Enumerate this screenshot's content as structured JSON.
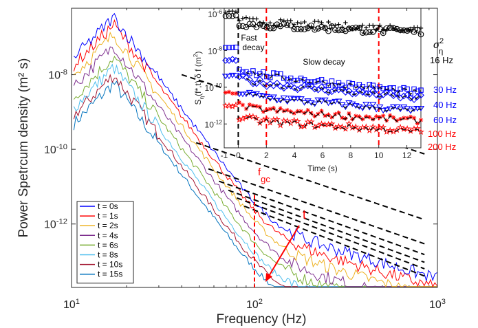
{
  "chart_data": [
    {
      "type": "line",
      "xlabel": "Frequency  (Hz)",
      "ylabel": "Power Spetrcum density  (m² s)",
      "xscale": "log",
      "yscale": "log",
      "xlim": [
        10,
        1000
      ],
      "ylim": [
        2e-14,
        6e-07
      ],
      "x_ticks": [
        {
          "v": 10,
          "b": "10",
          "e": "1"
        },
        {
          "v": 100,
          "b": "10",
          "e": "2"
        },
        {
          "v": 1000,
          "b": "10",
          "e": "3"
        }
      ],
      "y_ticks": [
        {
          "v": 1e-12,
          "b": "10",
          "e": "-12"
        },
        {
          "v": 1e-10,
          "b": "10",
          "e": "-10"
        },
        {
          "v": 1e-08,
          "b": "10",
          "e": "-8"
        }
      ],
      "legend_position": "bottom-left",
      "series": [
        {
          "name": "t = 0s",
          "color": "#0000ff",
          "peak": 3.5e-07,
          "high": 6e-13,
          "knee": 130
        },
        {
          "name": "t = 1s",
          "color": "#ff0000",
          "peak": 2.2e-07,
          "high": 4e-13,
          "knee": 115
        },
        {
          "name": "t = 2s",
          "color": "#edb120",
          "peak": 1.2e-07,
          "high": 2.5e-13,
          "knee": 100
        },
        {
          "name": "t = 4s",
          "color": "#7e2f8e",
          "peak": 6e-08,
          "high": 1.5e-13,
          "knee": 90
        },
        {
          "name": "t = 6s",
          "color": "#77ac30",
          "peak": 3e-08,
          "high": 1e-13,
          "knee": 80
        },
        {
          "name": "t = 8s",
          "color": "#4dbeee",
          "peak": 1.6e-08,
          "high": 6e-14,
          "knee": 70
        },
        {
          "name": "t = 10s",
          "color": "#a2142f",
          "peak": 1e-08,
          "high": 4e-14,
          "knee": 65
        },
        {
          "name": "t = 15s",
          "color": "#0072bd",
          "peak": 6e-09,
          "high": 3e-14,
          "knee": 60
        }
      ],
      "cutoff": {
        "label_main": "f",
        "label_sub": "gc",
        "x": 100,
        "color": "#ff0000"
      },
      "arrow_label": "t",
      "arrow_color": "#ff0000"
    },
    {
      "type": "scatter",
      "xlabel": "Time  (s)",
      "ylabel_parts": {
        "a": "S",
        "b": "η",
        "c": "(f*,t) δ f   (m",
        "d": "2",
        "e": ")"
      },
      "xlim": [
        -1,
        13
      ],
      "ylim": [
        5e-14,
        2e-06
      ],
      "yscale": "log",
      "x_ticks": [
        -1,
        0,
        2,
        4,
        6,
        8,
        10,
        12
      ],
      "y_ticks": [
        {
          "v": 1e-06,
          "b": "10",
          "e": "-6"
        },
        {
          "v": 1e-08,
          "b": "10",
          "e": "-8"
        },
        {
          "v": 1e-10,
          "b": "10",
          "e": "-10"
        },
        {
          "v": 1e-12,
          "b": "10",
          "e": "-12"
        }
      ],
      "vlines": [
        {
          "x": 0,
          "color": "#000000"
        },
        {
          "x": 2,
          "color": "#ff0000"
        },
        {
          "x": 10,
          "color": "#ff0000"
        }
      ],
      "annotations": {
        "fast_a": "Fast",
        "fast_b": "decay",
        "slow": "Slow decay"
      },
      "series": [
        {
          "name": "σ²η",
          "marker": "plus",
          "color": "#000000",
          "start": 1.3e-06,
          "end": 1.5e-07
        },
        {
          "name": "16 Hz",
          "marker": "circle",
          "color": "#000000",
          "start": 8e-07,
          "end": 1e-07
        },
        {
          "name": "30 Hz",
          "marker": "square",
          "color": "#0000ff",
          "start": 1.5e-08,
          "end": 5e-11
        },
        {
          "name": "40 Hz",
          "marker": "diamond",
          "color": "#0000ff",
          "start": 3e-09,
          "end": 2.5e-11
        },
        {
          "name": "60 Hz",
          "marker": "triangle",
          "color": "#0000ff",
          "start": 4e-10,
          "end": 5e-12
        },
        {
          "name": "100 Hz",
          "marker": "asterisk",
          "color": "#ff0000",
          "start": 5e-11,
          "end": 1.5e-12
        },
        {
          "name": "200 Hz",
          "marker": "star",
          "color": "#ff0000",
          "start": 1e-11,
          "end": 4e-13
        }
      ],
      "side_labels": {
        "sigma": "σ",
        "sigma_sup": "2",
        "sigma_sub": "η",
        "l16": "16 Hz",
        "l30": "30 Hz",
        "l40": "40 Hz",
        "l60": "60 Hz",
        "l100": "100 Hz",
        "l200": "200 Hz"
      }
    }
  ]
}
